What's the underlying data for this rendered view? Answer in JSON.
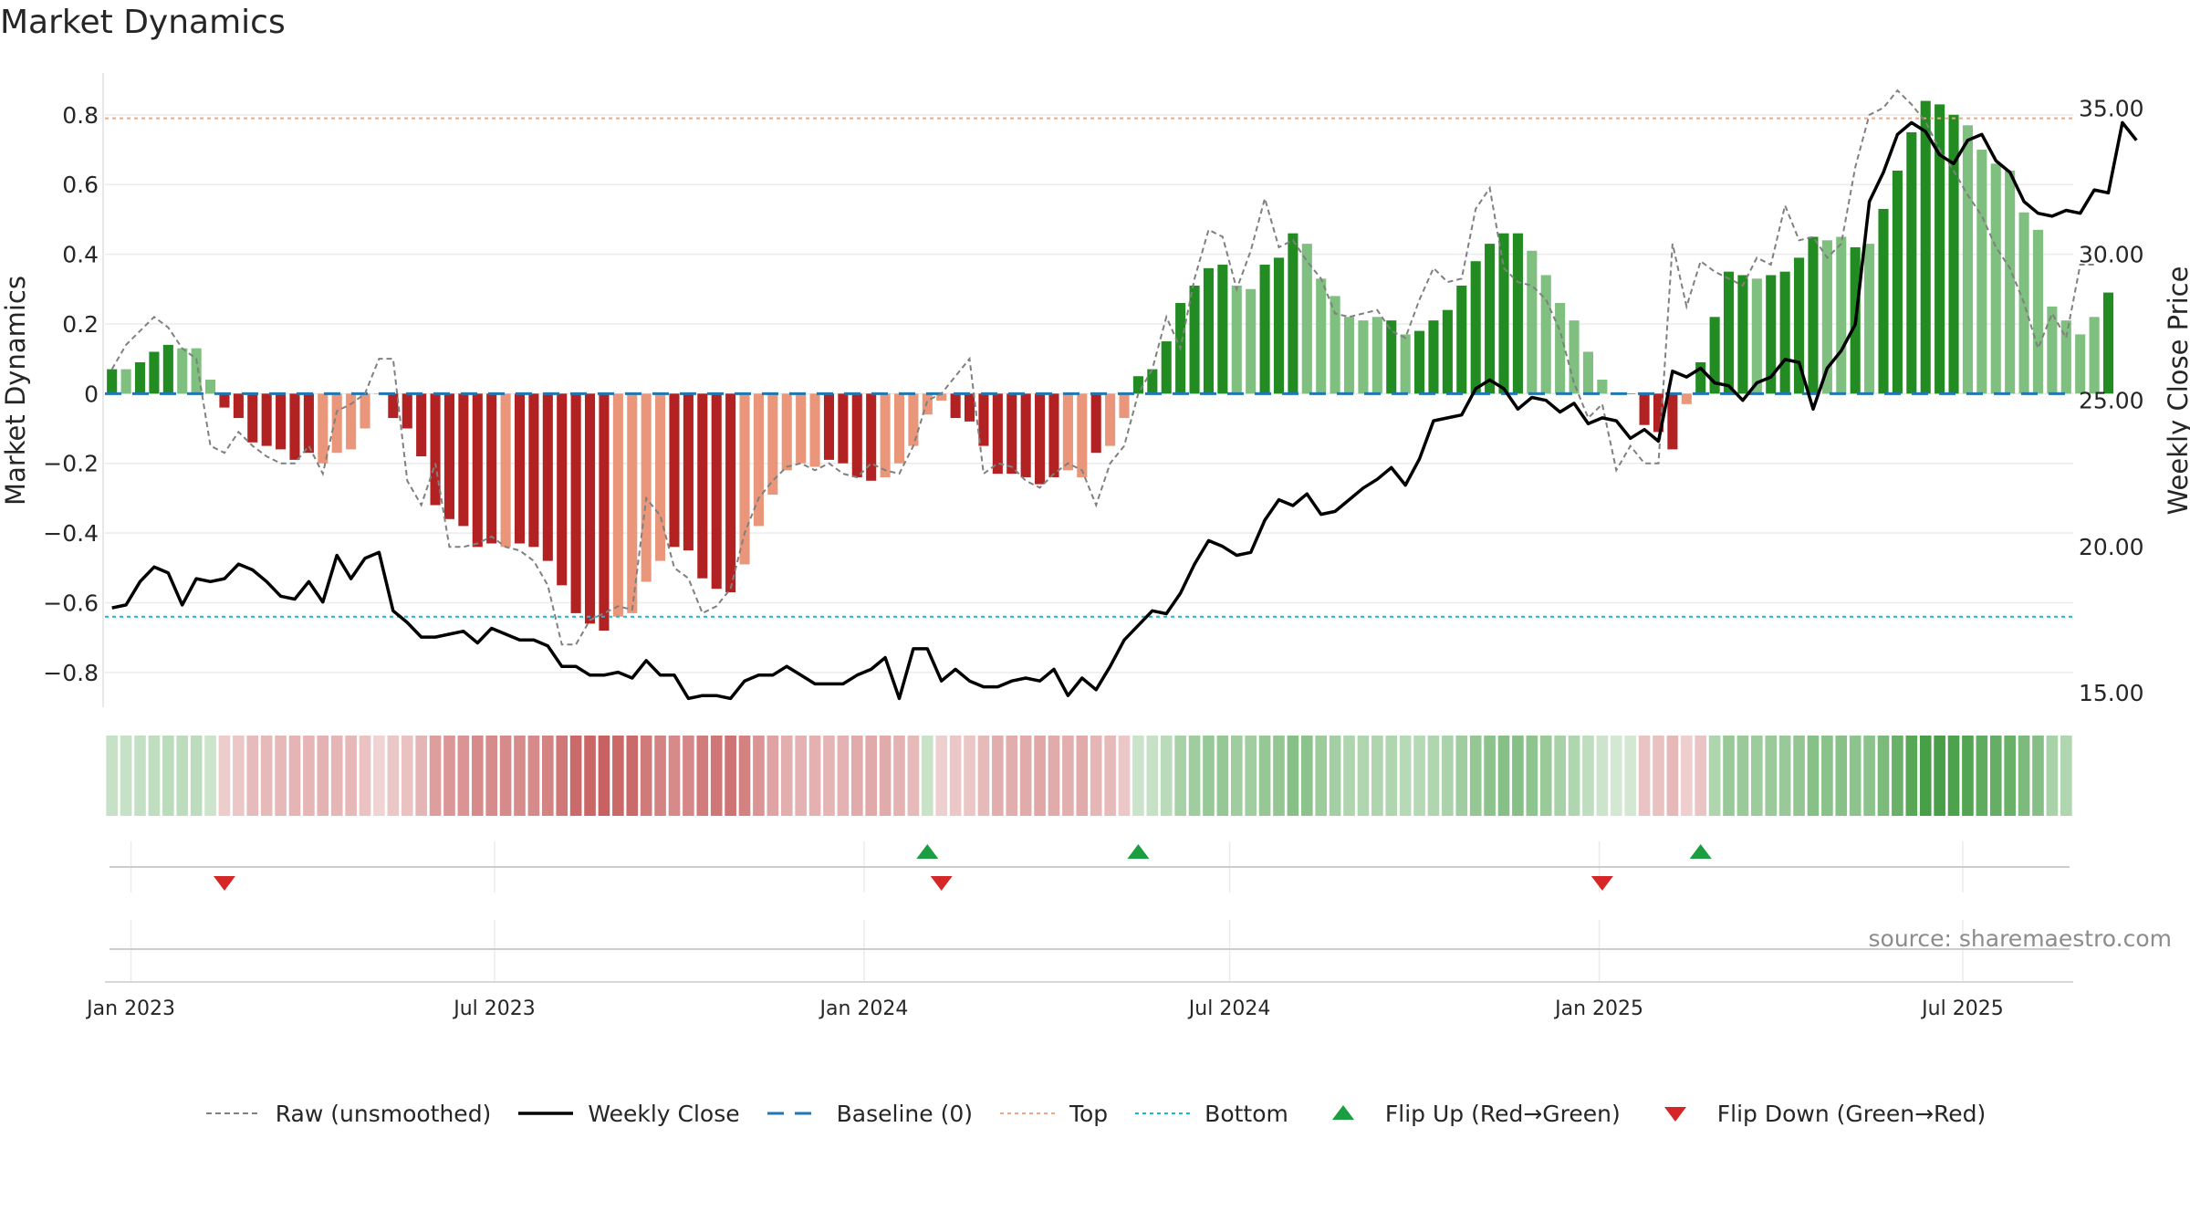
{
  "title": "Market Dynamics",
  "source": "source: sharemaestro.com",
  "colors": {
    "strong_green": "#228b22",
    "light_green": "#7fbf7f",
    "strong_red": "#b22222",
    "light_red": "#e9967a",
    "raw": "#808080",
    "close": "#000000",
    "baseline": "#1f77b4",
    "top": "#f4a582",
    "bottom": "#17becf",
    "flip_up": "#1a9e3f",
    "flip_down": "#d62728"
  },
  "legend": [
    {
      "key": "raw",
      "label": "Raw (unsmoothed)",
      "icon": "dashed-gray-line-icon"
    },
    {
      "key": "close",
      "label": "Weekly Close",
      "icon": "solid-black-line-icon"
    },
    {
      "key": "baseline",
      "label": "Baseline (0)",
      "icon": "dashed-blue-line-icon"
    },
    {
      "key": "top",
      "label": "Top",
      "icon": "dotted-orange-line-icon"
    },
    {
      "key": "bottom",
      "label": "Bottom",
      "icon": "dotted-cyan-line-icon"
    },
    {
      "key": "flip_up",
      "label": "Flip Up (Red→Green)",
      "icon": "triangle-up-icon"
    },
    {
      "key": "flip_down",
      "label": "Flip Down (Green→Red)",
      "icon": "triangle-down-icon"
    }
  ],
  "chart_data": {
    "type": "bar",
    "title": "Market Dynamics",
    "ylabel_left": "Market Dynamics",
    "ylabel_right": "Weekly Close Price",
    "ylim_left": [
      -0.9,
      0.92
    ],
    "ylim_right": [
      14.5,
      36.2
    ],
    "yticks_left": [
      "−0.8",
      "−0.6",
      "−0.4",
      "−0.2",
      "0",
      "0.2",
      "0.4",
      "0.6",
      "0.8"
    ],
    "yticks_left_values": [
      -0.8,
      -0.6,
      -0.4,
      -0.2,
      0,
      0.2,
      0.4,
      0.6,
      0.8
    ],
    "yticks_right": [
      "15.00",
      "20.00",
      "25.00",
      "30.00",
      "35.00"
    ],
    "yticks_right_values": [
      15,
      20,
      25,
      30,
      35
    ],
    "x_start": "2022-12-19",
    "week_count": 140,
    "xticks": [
      {
        "label": "Jan 2023",
        "date": "2023-01-01"
      },
      {
        "label": "Jul 2023",
        "date": "2023-07-01"
      },
      {
        "label": "Jan 2024",
        "date": "2024-01-01"
      },
      {
        "label": "Jul 2024",
        "date": "2024-07-01"
      },
      {
        "label": "Jan 2025",
        "date": "2025-01-01"
      },
      {
        "label": "Jul 2025",
        "date": "2025-07-01"
      }
    ],
    "grid": true,
    "legend_position": "bottom",
    "top_level": 0.79,
    "bottom_level": -0.64,
    "baseline": 0,
    "bar_values": [
      0.07,
      0.07,
      0.09,
      0.12,
      0.14,
      0.13,
      0.13,
      0.04,
      -0.04,
      -0.07,
      -0.14,
      -0.15,
      -0.16,
      -0.19,
      -0.17,
      -0.2,
      -0.17,
      -0.16,
      -0.1,
      0.0,
      -0.07,
      -0.1,
      -0.18,
      -0.32,
      -0.36,
      -0.38,
      -0.44,
      -0.43,
      -0.44,
      -0.43,
      -0.44,
      -0.48,
      -0.55,
      -0.63,
      -0.66,
      -0.68,
      -0.64,
      -0.63,
      -0.54,
      -0.48,
      -0.44,
      -0.45,
      -0.53,
      -0.56,
      -0.57,
      -0.49,
      -0.38,
      -0.29,
      -0.22,
      -0.2,
      -0.21,
      -0.19,
      -0.2,
      -0.24,
      -0.25,
      -0.24,
      -0.2,
      -0.15,
      -0.06,
      -0.02,
      -0.07,
      -0.08,
      -0.15,
      -0.23,
      -0.23,
      -0.24,
      -0.26,
      -0.24,
      -0.22,
      -0.24,
      -0.17,
      -0.15,
      -0.07,
      0.05,
      0.07,
      0.15,
      0.26,
      0.31,
      0.36,
      0.37,
      0.31,
      0.3,
      0.37,
      0.39,
      0.46,
      0.43,
      0.33,
      0.28,
      0.22,
      0.21,
      0.22,
      0.21,
      0.17,
      0.18,
      0.21,
      0.24,
      0.31,
      0.38,
      0.43,
      0.46,
      0.46,
      0.41,
      0.34,
      0.26,
      0.21,
      0.12,
      0.04,
      0.0,
      0.0,
      -0.09,
      -0.11,
      -0.16,
      -0.03,
      0.09,
      0.22,
      0.35,
      0.34,
      0.33,
      0.34,
      0.35,
      0.39,
      0.45,
      0.44,
      0.45,
      0.42,
      0.43,
      0.53,
      0.64,
      0.75,
      0.84,
      0.83,
      0.8,
      0.77,
      0.7,
      0.66,
      0.64,
      0.52,
      0.47,
      0.25,
      0.21,
      0.17,
      0.22,
      0.29
    ],
    "bar_colors": [
      "g",
      "l",
      "g",
      "g",
      "g",
      "l",
      "l",
      "l",
      "R",
      "R",
      "R",
      "R",
      "R",
      "R",
      "R",
      "r",
      "r",
      "r",
      "r",
      "r",
      "R",
      "R",
      "R",
      "R",
      "R",
      "R",
      "R",
      "R",
      "r",
      "R",
      "R",
      "R",
      "R",
      "R",
      "R",
      "R",
      "r",
      "r",
      "r",
      "r",
      "R",
      "R",
      "R",
      "R",
      "R",
      "r",
      "r",
      "r",
      "r",
      "r",
      "r",
      "R",
      "R",
      "R",
      "R",
      "r",
      "r",
      "r",
      "r",
      "r",
      "R",
      "R",
      "R",
      "R",
      "R",
      "R",
      "R",
      "R",
      "r",
      "r",
      "R",
      "r",
      "r",
      "g",
      "g",
      "g",
      "g",
      "g",
      "g",
      "g",
      "l",
      "l",
      "g",
      "g",
      "g",
      "l",
      "l",
      "l",
      "l",
      "l",
      "l",
      "g",
      "l",
      "g",
      "g",
      "g",
      "g",
      "g",
      "g",
      "g",
      "g",
      "l",
      "l",
      "l",
      "l",
      "l",
      "l",
      "l",
      "R",
      "R",
      "R",
      "R",
      "r",
      "g",
      "g",
      "g",
      "g",
      "l",
      "g",
      "g",
      "g",
      "g",
      "l",
      "l",
      "g",
      "l",
      "g",
      "g",
      "g",
      "g",
      "g",
      "g",
      "l",
      "l",
      "l",
      "l",
      "l",
      "l",
      "l",
      "l",
      "l",
      "l",
      "g",
      "g"
    ],
    "raw_values": [
      0.07,
      0.14,
      0.18,
      0.22,
      0.19,
      0.13,
      0.1,
      -0.15,
      -0.17,
      -0.11,
      -0.15,
      -0.18,
      -0.2,
      -0.2,
      -0.15,
      -0.23,
      -0.05,
      -0.03,
      0.0,
      0.1,
      0.1,
      -0.25,
      -0.32,
      -0.2,
      -0.44,
      -0.44,
      -0.43,
      -0.41,
      -0.44,
      -0.45,
      -0.48,
      -0.55,
      -0.72,
      -0.72,
      -0.65,
      -0.63,
      -0.61,
      -0.62,
      -0.3,
      -0.35,
      -0.5,
      -0.53,
      -0.63,
      -0.61,
      -0.56,
      -0.4,
      -0.3,
      -0.25,
      -0.21,
      -0.2,
      -0.22,
      -0.2,
      -0.23,
      -0.24,
      -0.2,
      -0.22,
      -0.23,
      -0.15,
      -0.02,
      0.0,
      0.05,
      0.1,
      -0.23,
      -0.2,
      -0.21,
      -0.25,
      -0.27,
      -0.23,
      -0.2,
      -0.22,
      -0.32,
      -0.2,
      -0.15,
      0.0,
      0.07,
      0.22,
      0.13,
      0.33,
      0.47,
      0.45,
      0.3,
      0.41,
      0.56,
      0.42,
      0.44,
      0.38,
      0.33,
      0.23,
      0.22,
      0.23,
      0.24,
      0.18,
      0.16,
      0.27,
      0.36,
      0.32,
      0.33,
      0.53,
      0.59,
      0.36,
      0.32,
      0.31,
      0.27,
      0.18,
      0.03,
      -0.07,
      -0.03,
      -0.22,
      -0.15,
      -0.2,
      -0.2,
      0.43,
      0.25,
      0.38,
      0.35,
      0.33,
      0.31,
      0.39,
      0.37,
      0.54,
      0.44,
      0.45,
      0.39,
      0.43,
      0.65,
      0.8,
      0.82,
      0.87,
      0.83,
      0.78,
      0.7,
      0.64,
      0.57,
      0.51,
      0.42,
      0.36,
      0.26,
      0.13,
      0.23,
      0.16,
      0.37,
      0.37
    ],
    "close_values": [
      17.9,
      18.0,
      18.8,
      19.3,
      19.1,
      18.0,
      18.9,
      18.8,
      18.9,
      19.4,
      19.2,
      18.8,
      18.3,
      18.2,
      18.8,
      18.1,
      19.7,
      18.9,
      19.6,
      19.8,
      17.8,
      17.4,
      16.9,
      16.9,
      17.0,
      17.1,
      16.7,
      17.2,
      17.0,
      16.8,
      16.8,
      16.6,
      15.9,
      15.9,
      15.6,
      15.6,
      15.7,
      15.5,
      16.1,
      15.6,
      15.6,
      14.8,
      14.9,
      14.9,
      14.8,
      15.4,
      15.6,
      15.6,
      15.9,
      15.6,
      15.3,
      15.3,
      15.3,
      15.6,
      15.8,
      16.2,
      14.8,
      16.5,
      16.5,
      15.4,
      15.8,
      15.4,
      15.2,
      15.2,
      15.4,
      15.5,
      15.4,
      15.8,
      14.9,
      15.5,
      15.1,
      15.9,
      16.8,
      17.3,
      17.8,
      17.7,
      18.4,
      19.4,
      20.2,
      20.0,
      19.7,
      19.8,
      20.9,
      21.6,
      21.4,
      21.8,
      21.1,
      21.2,
      21.6,
      22.0,
      22.3,
      22.7,
      22.1,
      23.0,
      24.3,
      24.4,
      24.5,
      25.4,
      25.7,
      25.4,
      24.7,
      25.1,
      25.0,
      24.6,
      24.9,
      24.2,
      24.4,
      24.3,
      23.7,
      24.0,
      23.6,
      26.0,
      25.8,
      26.1,
      25.6,
      25.5,
      25.0,
      25.6,
      25.8,
      26.4,
      26.3,
      24.7,
      26.1,
      26.7,
      27.6,
      31.8,
      32.8,
      34.1,
      34.5,
      34.2,
      33.4,
      33.1,
      33.9,
      34.1,
      33.2,
      32.8,
      31.8,
      31.4,
      31.3,
      31.5,
      31.4,
      32.2,
      32.1,
      34.5,
      33.9
    ],
    "regime_intensity": [
      0.3,
      0.3,
      0.3,
      0.3,
      0.3,
      0.3,
      0.3,
      0.3,
      0.3,
      0.3,
      0.3,
      0.3,
      0.3,
      0.3,
      0.3,
      0.3,
      0.3,
      0.3,
      0.3,
      0.3,
      0.3,
      0.3,
      0.3,
      0.3,
      0.3,
      0.3,
      0.3,
      0.3,
      0.3,
      0.3,
      0.3,
      0.3,
      0.3,
      0.3,
      0.3,
      0.3,
      0.3,
      0.3,
      0.3,
      0.3,
      0.3,
      0.3,
      0.3,
      0.3,
      0.3,
      0.3,
      0.3,
      0.3,
      0.3,
      0.3,
      0.3,
      0.3,
      0.3,
      0.3,
      0.3,
      0.3,
      0.3,
      0.3,
      0.3,
      0.3,
      0.3,
      0.3,
      0.3,
      0.3,
      0.3,
      0.3,
      0.3,
      0.3,
      0.3,
      0.3,
      0.3,
      0.3,
      0.3,
      0.3,
      0.3,
      0.3,
      0.3,
      0.3,
      0.3,
      0.3,
      0.3,
      0.3,
      0.3,
      0.3,
      0.3,
      0.3,
      0.3,
      0.3,
      0.3,
      0.3,
      0.3,
      0.3,
      0.3,
      0.3,
      0.3,
      0.3,
      0.3,
      0.3,
      0.3,
      0.3,
      0.3,
      0.3,
      0.3,
      0.3,
      0.3,
      0.3,
      0.3,
      0.3,
      0.3,
      0.3,
      0.3,
      0.3,
      0.3,
      0.3,
      0.3,
      0.3,
      0.3,
      0.3,
      0.3,
      0.3,
      0.3,
      0.3,
      0.3,
      0.3,
      0.3,
      0.3,
      0.3,
      0.3,
      0.3,
      0.3,
      0.3,
      0.3,
      0.3,
      0.3,
      0.3,
      0.3,
      0.3,
      0.3,
      0.3,
      0.3
    ],
    "regime_sign": [
      "g",
      "g",
      "g",
      "g",
      "g",
      "g",
      "g",
      "g",
      "r",
      "r",
      "r",
      "r",
      "r",
      "r",
      "r",
      "r",
      "r",
      "r",
      "r",
      "r",
      "r",
      "r",
      "r",
      "r",
      "r",
      "r",
      "r",
      "r",
      "r",
      "r",
      "r",
      "r",
      "r",
      "r",
      "r",
      "r",
      "r",
      "r",
      "r",
      "r",
      "r",
      "r",
      "r",
      "r",
      "r",
      "r",
      "r",
      "r",
      "r",
      "r",
      "r",
      "r",
      "r",
      "r",
      "r",
      "r",
      "r",
      "r",
      "g",
      "r",
      "r",
      "r",
      "r",
      "r",
      "r",
      "r",
      "r",
      "r",
      "r",
      "r",
      "r",
      "r",
      "r",
      "g",
      "g",
      "g",
      "g",
      "g",
      "g",
      "g",
      "g",
      "g",
      "g",
      "g",
      "g",
      "g",
      "g",
      "g",
      "g",
      "g",
      "g",
      "g",
      "g",
      "g",
      "g",
      "g",
      "g",
      "g",
      "g",
      "g",
      "g",
      "g",
      "g",
      "g",
      "g",
      "g",
      "g",
      "g",
      "g",
      "r",
      "r",
      "r",
      "r",
      "r",
      "g",
      "g",
      "g",
      "g",
      "g",
      "g",
      "g",
      "g",
      "g",
      "g",
      "g",
      "g",
      "g",
      "g",
      "g",
      "g",
      "g",
      "g",
      "g",
      "g",
      "g",
      "g",
      "g",
      "g",
      "g",
      "g",
      "g",
      "g",
      "g"
    ],
    "flips_up_week": [
      58,
      73,
      113
    ],
    "flips_down_week": [
      8,
      59,
      106
    ]
  }
}
